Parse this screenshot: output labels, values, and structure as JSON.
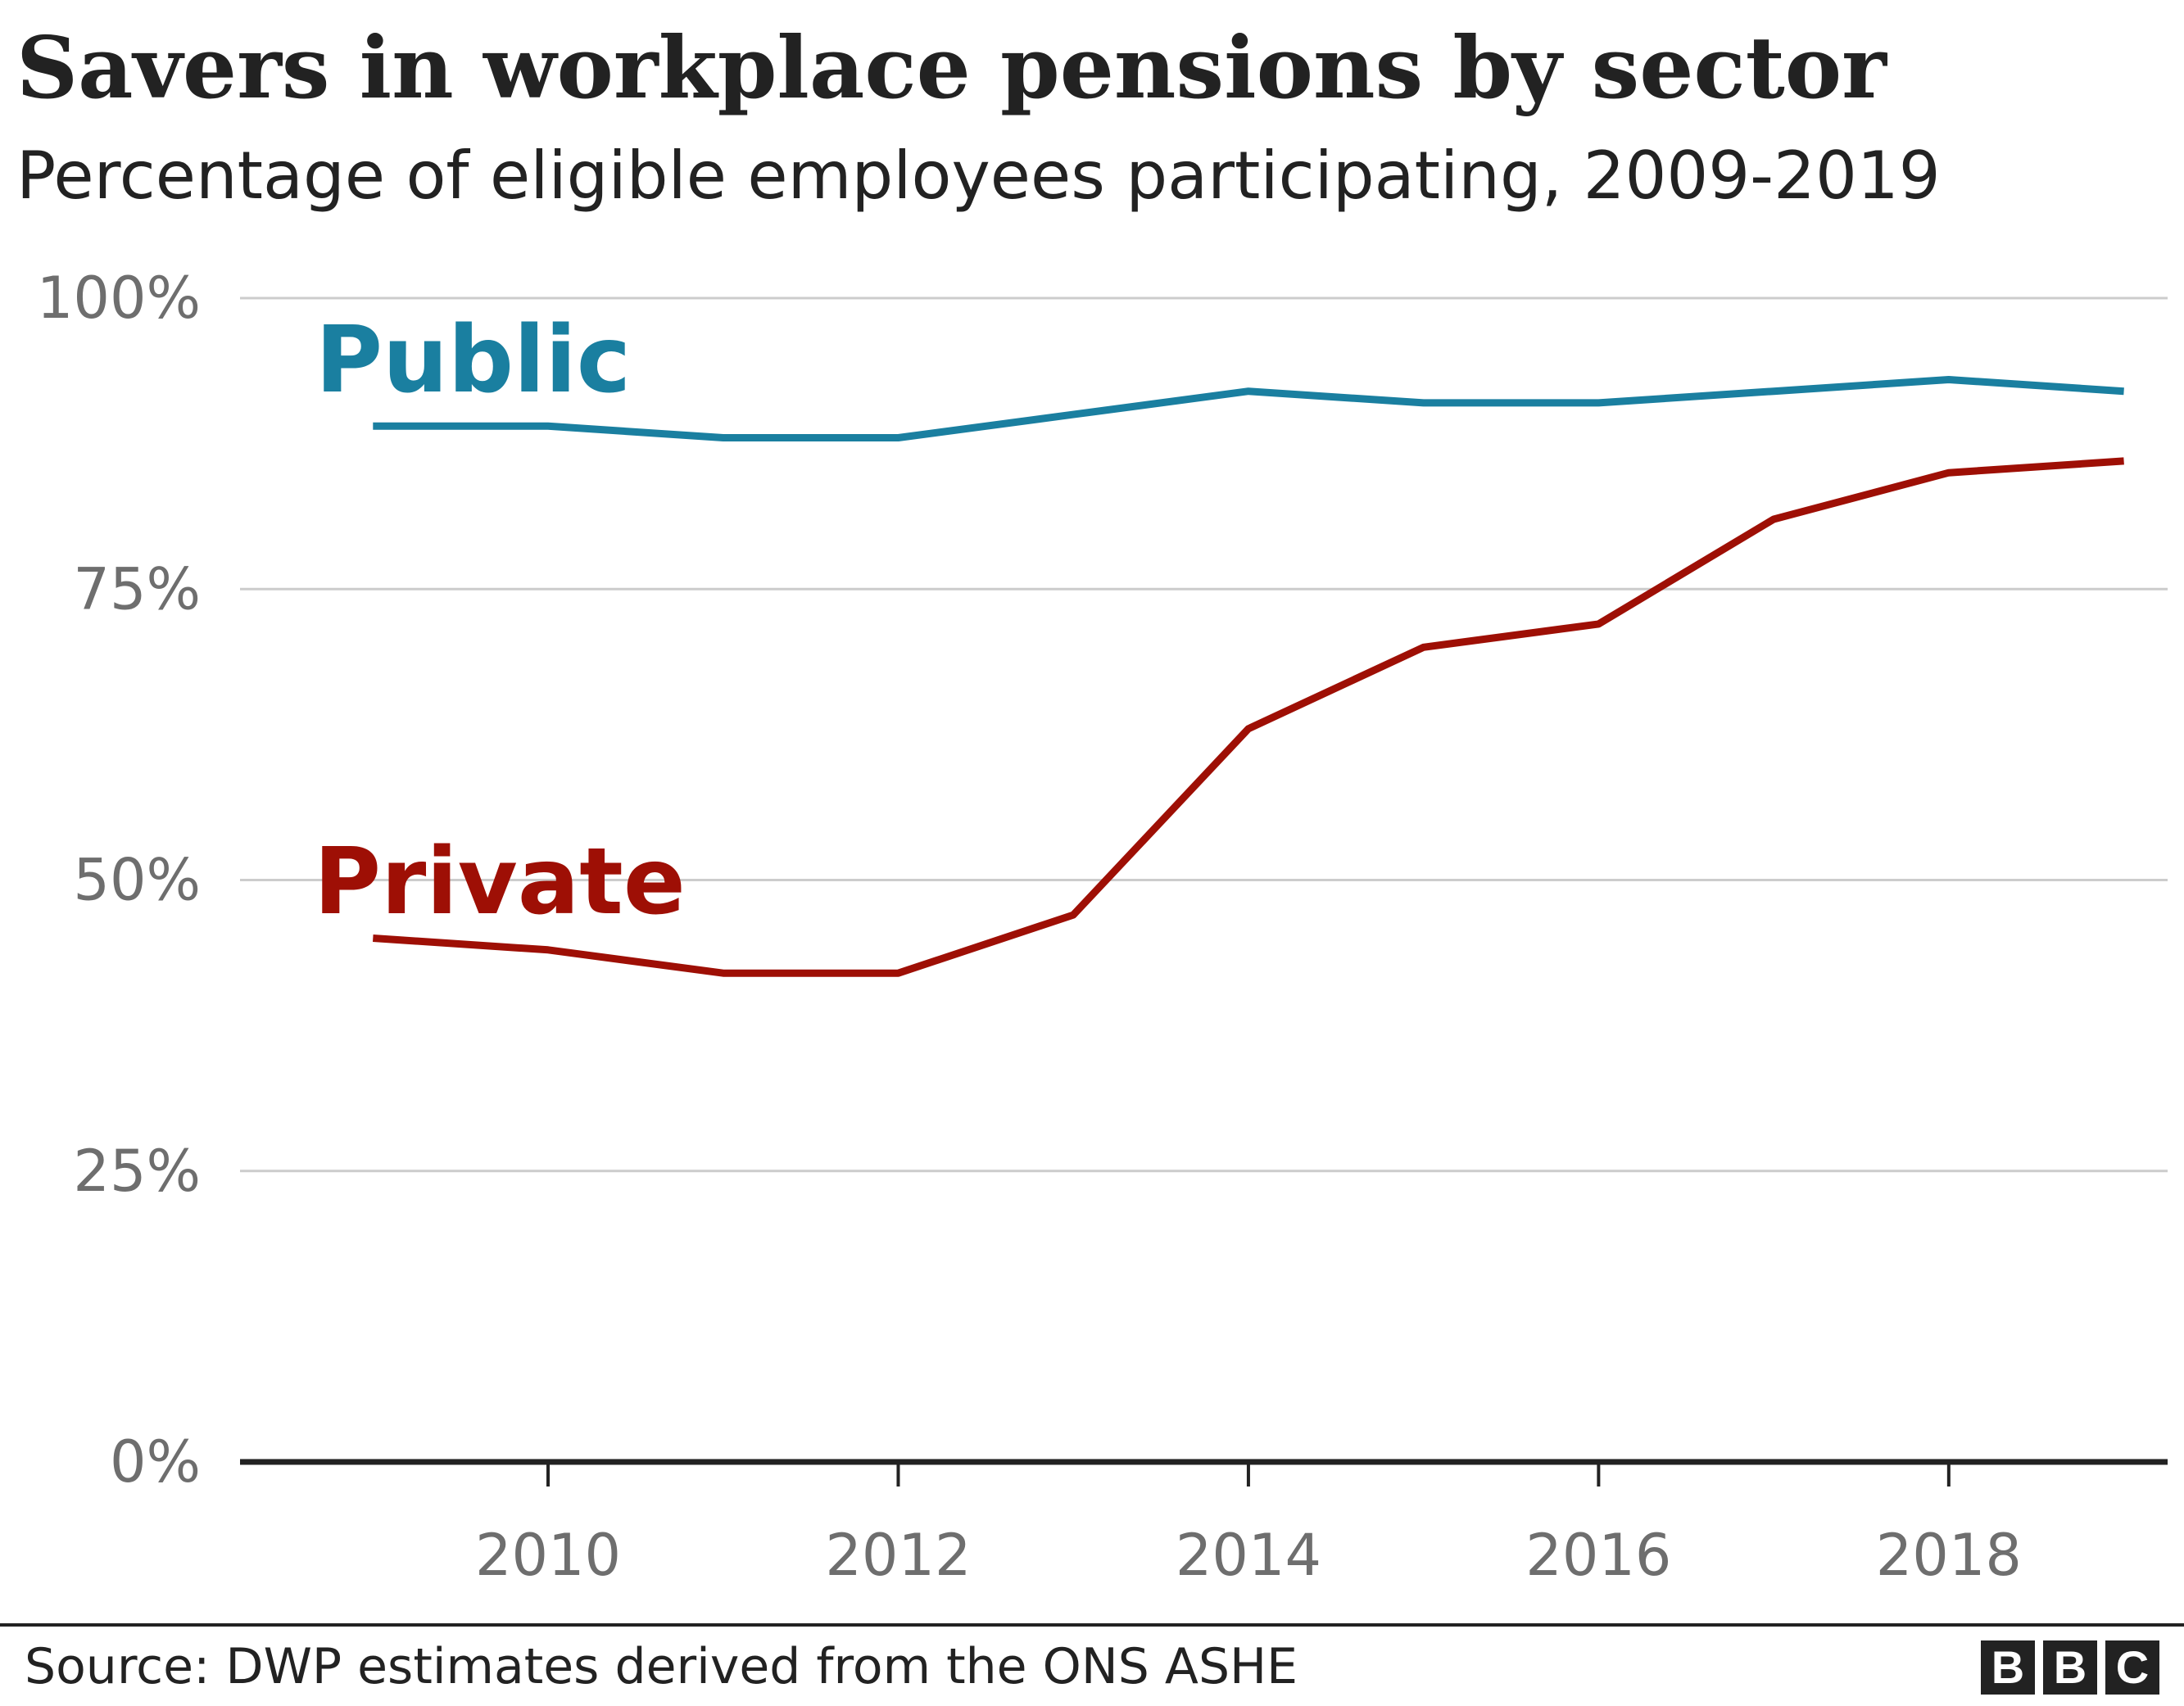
{
  "header": {
    "title": "Savers in workplace pensions by sector",
    "subtitle": "Percentage of eligible employees participating, 2009-2019"
  },
  "footer": {
    "source": "Source: DWP estimates derived from the ONS ASHE",
    "logo_letters": [
      "B",
      "B",
      "C"
    ]
  },
  "colors": {
    "public": "#1a7fa0",
    "private": "#9e0f05",
    "gridline": "#cccccc",
    "axis": "#222222",
    "tick_text": "#6e6e6e"
  },
  "chart_data": {
    "type": "line",
    "title": "Savers in workplace pensions by sector",
    "subtitle": "Percentage of eligible employees participating, 2009-2019",
    "xlabel": "",
    "ylabel": "",
    "x": [
      2009,
      2010,
      2011,
      2012,
      2013,
      2014,
      2015,
      2016,
      2017,
      2018,
      2019
    ],
    "xlim": [
      2008.25,
      2019.25
    ],
    "ylim": [
      0,
      100
    ],
    "y_ticks": [
      0,
      25,
      50,
      75,
      100
    ],
    "y_tick_labels": [
      "0%",
      "25%",
      "50%",
      "75%",
      "100%"
    ],
    "x_ticks": [
      2010,
      2012,
      2014,
      2016,
      2018
    ],
    "x_tick_labels": [
      "2010",
      "2012",
      "2014",
      "2016",
      "2018"
    ],
    "grid": true,
    "legend": "direct labels on lines",
    "series": [
      {
        "name": "Public",
        "color": "#1a7fa0",
        "values": [
          89,
          89,
          88,
          88,
          90,
          92,
          91,
          91,
          92,
          93,
          92
        ]
      },
      {
        "name": "Private",
        "color": "#9e0f05",
        "values": [
          45,
          44,
          42,
          42,
          47,
          63,
          70,
          72,
          81,
          85,
          86
        ]
      }
    ],
    "source": "Source: DWP estimates derived from the ONS ASHE"
  }
}
